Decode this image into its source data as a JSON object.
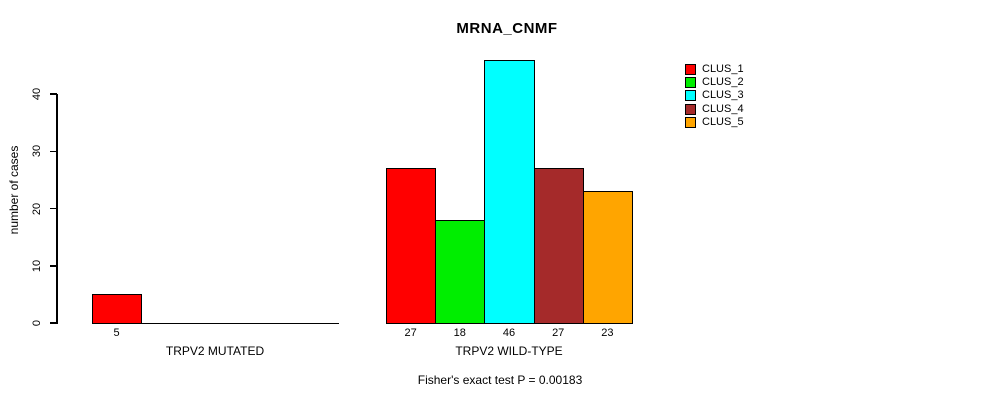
{
  "chart_data": {
    "type": "bar",
    "title": "MRNA_CNMF",
    "ylabel": "number of cases",
    "xlabel": "",
    "categories": [
      "TRPV2 MUTATED",
      "TRPV2 WILD-TYPE"
    ],
    "series": [
      {
        "name": "CLUS_1",
        "color": "#FF0000",
        "values": [
          5,
          27
        ]
      },
      {
        "name": "CLUS_2",
        "color": "#00EE00",
        "values": [
          0,
          18
        ]
      },
      {
        "name": "CLUS_3",
        "color": "#00FFFF",
        "values": [
          0,
          46
        ]
      },
      {
        "name": "CLUS_4",
        "color": "#A52A2A",
        "values": [
          0,
          27
        ]
      },
      {
        "name": "CLUS_5",
        "color": "#FFA500",
        "values": [
          0,
          23
        ]
      }
    ],
    "yticks": [
      0,
      10,
      20,
      30,
      40
    ],
    "ylim": [
      0,
      46
    ],
    "grid": false,
    "legend_position": "top-right",
    "bar_value_labels": true,
    "caption": "Fisher's exact test P = 0.00183"
  }
}
